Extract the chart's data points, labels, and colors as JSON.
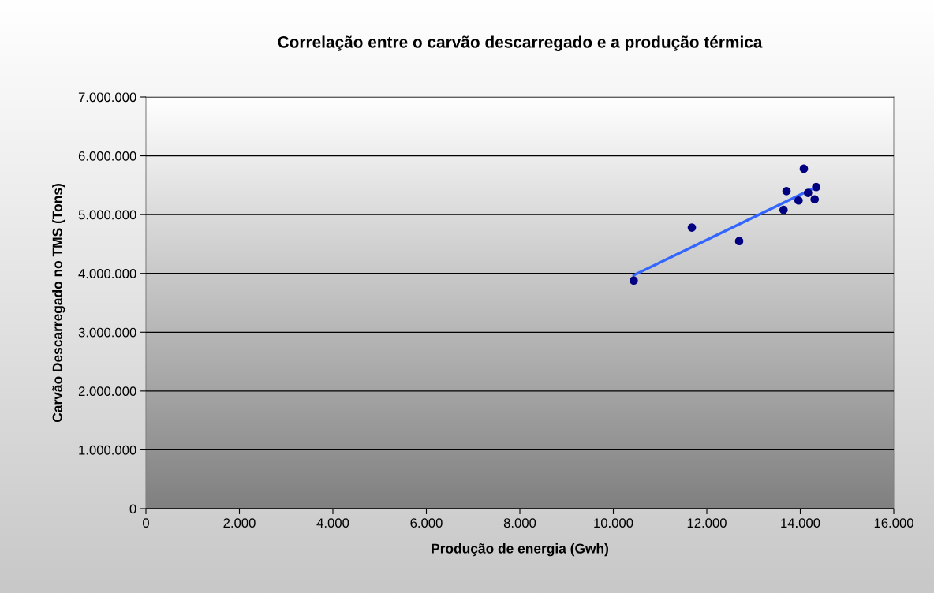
{
  "chart_data": {
    "type": "scatter",
    "title": "Correlação entre o carvão descarregado e a produção térmica",
    "xlabel": "Produção de energia (Gwh)",
    "ylabel": "Carvão Descarregado no TMS (Tons)",
    "series": [
      {
        "color": "#000080",
        "marker": "circle",
        "x": [
          10436,
          11680,
          12692,
          13642,
          13705,
          13963,
          14076,
          14166,
          14307,
          14341
        ],
        "values": [
          3880000,
          4780000,
          4550000,
          5080000,
          5400000,
          5240000,
          5780000,
          5370000,
          5260000,
          5470000
        ]
      },
      {
        "type": "line",
        "color": "#3366ff",
        "marker": "none",
        "x": [
          10436,
          14341
        ],
        "values": [
          3970000,
          5470000
        ]
      }
    ],
    "xlim": [
      0,
      16000
    ],
    "ylim": [
      0,
      7000000
    ],
    "xticks": [
      0,
      {
        "value": 2000,
        "label": "2.000"
      },
      {
        "value": 4000,
        "label": "4.000"
      },
      {
        "value": 6000,
        "label": "6.000"
      },
      {
        "value": 8000,
        "label": "8.000"
      },
      {
        "value": 10000,
        "label": "10.000"
      },
      {
        "value": 12000,
        "label": "12.000"
      },
      {
        "value": 14000,
        "label": "14.000"
      },
      {
        "value": 16000,
        "label": "16.000"
      }
    ],
    "yticks": [
      0,
      {
        "value": 1000000,
        "label": "1.000.000"
      },
      {
        "value": 2000000,
        "label": "2.000.000"
      },
      {
        "value": 3000000,
        "label": "3.000.000"
      },
      {
        "value": 4000000,
        "label": "4.000.000"
      },
      {
        "value": 5000000,
        "label": "5.000.000"
      },
      {
        "value": 6000000,
        "label": "6.000.000"
      },
      {
        "value": 7000000,
        "label": "7.000.000"
      }
    ],
    "grid": "y",
    "legend": false
  }
}
